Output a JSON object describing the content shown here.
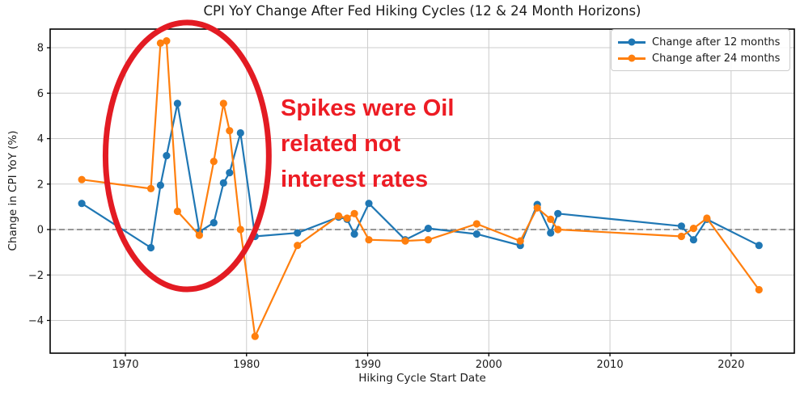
{
  "title": "CPI YoY Change After Fed Hiking Cycles (12 & 24 Month Horizons)",
  "xlabel": "Hiking Cycle Start Date",
  "ylabel": "Change in CPI YoY (%)",
  "legend": {
    "items": [
      {
        "label": "Change after 12 months",
        "color": "#1f77b4"
      },
      {
        "label": "Change after 24 months",
        "color": "#ff7f0e"
      }
    ]
  },
  "annotation": {
    "text": "Spikes were Oil\nrelated not\ninterest rates",
    "color": "#ed1c24"
  },
  "chart_data": {
    "type": "line",
    "title": "CPI YoY Change After Fed Hiking Cycles (12 & 24 Month Horizons)",
    "xlabel": "Hiking Cycle Start Date",
    "ylabel": "Change in CPI YoY (%)",
    "x": [
      1966.4,
      1972.1,
      1972.9,
      1973.4,
      1974.3,
      1976.1,
      1977.3,
      1978.1,
      1978.6,
      1979.5,
      1980.7,
      1984.2,
      1987.6,
      1988.3,
      1988.9,
      1990.1,
      1993.1,
      1995.0,
      1999.0,
      2002.6,
      2004.0,
      2005.1,
      2005.7,
      2015.9,
      2016.9,
      2018.0,
      2022.3
    ],
    "series": [
      {
        "name": "Change after 12 months",
        "color": "#1f77b4",
        "values": [
          1.15,
          -0.8,
          1.95,
          3.25,
          5.55,
          -0.1,
          0.3,
          2.05,
          2.5,
          4.25,
          -0.3,
          -0.15,
          0.55,
          0.45,
          -0.2,
          1.15,
          -0.45,
          0.05,
          -0.2,
          -0.7,
          1.1,
          -0.15,
          0.7,
          0.15,
          -0.45,
          0.45,
          -0.7
        ]
      },
      {
        "name": "Change after 24 months",
        "color": "#ff7f0e",
        "values": [
          2.2,
          1.8,
          8.2,
          8.3,
          0.8,
          -0.25,
          3.0,
          5.55,
          4.35,
          0.0,
          -4.7,
          -0.7,
          0.6,
          0.5,
          0.7,
          -0.45,
          -0.5,
          -0.45,
          0.25,
          -0.5,
          0.95,
          0.45,
          0.0,
          -0.3,
          0.05,
          0.5,
          -2.65
        ]
      }
    ],
    "xticks": [
      1970,
      1980,
      1990,
      2000,
      2010,
      2020
    ],
    "yticks": [
      -4,
      -2,
      0,
      2,
      4,
      6,
      8
    ],
    "xlim": [
      1963.79,
      2025.22
    ],
    "ylim": [
      -5.44,
      8.82
    ],
    "grid": true,
    "grid_color": "#cccccc",
    "zero_line": {
      "value": 0,
      "color": "#808080",
      "style": "dashed"
    },
    "legend_position": "upper right",
    "marker": "circle",
    "ellipse_annotation": {
      "cx_year": 1975.1,
      "cy_value": 3.24,
      "rx_years": 6.74,
      "ry_values": 5.87,
      "color": "#e31b23",
      "stroke_width": 7
    }
  }
}
